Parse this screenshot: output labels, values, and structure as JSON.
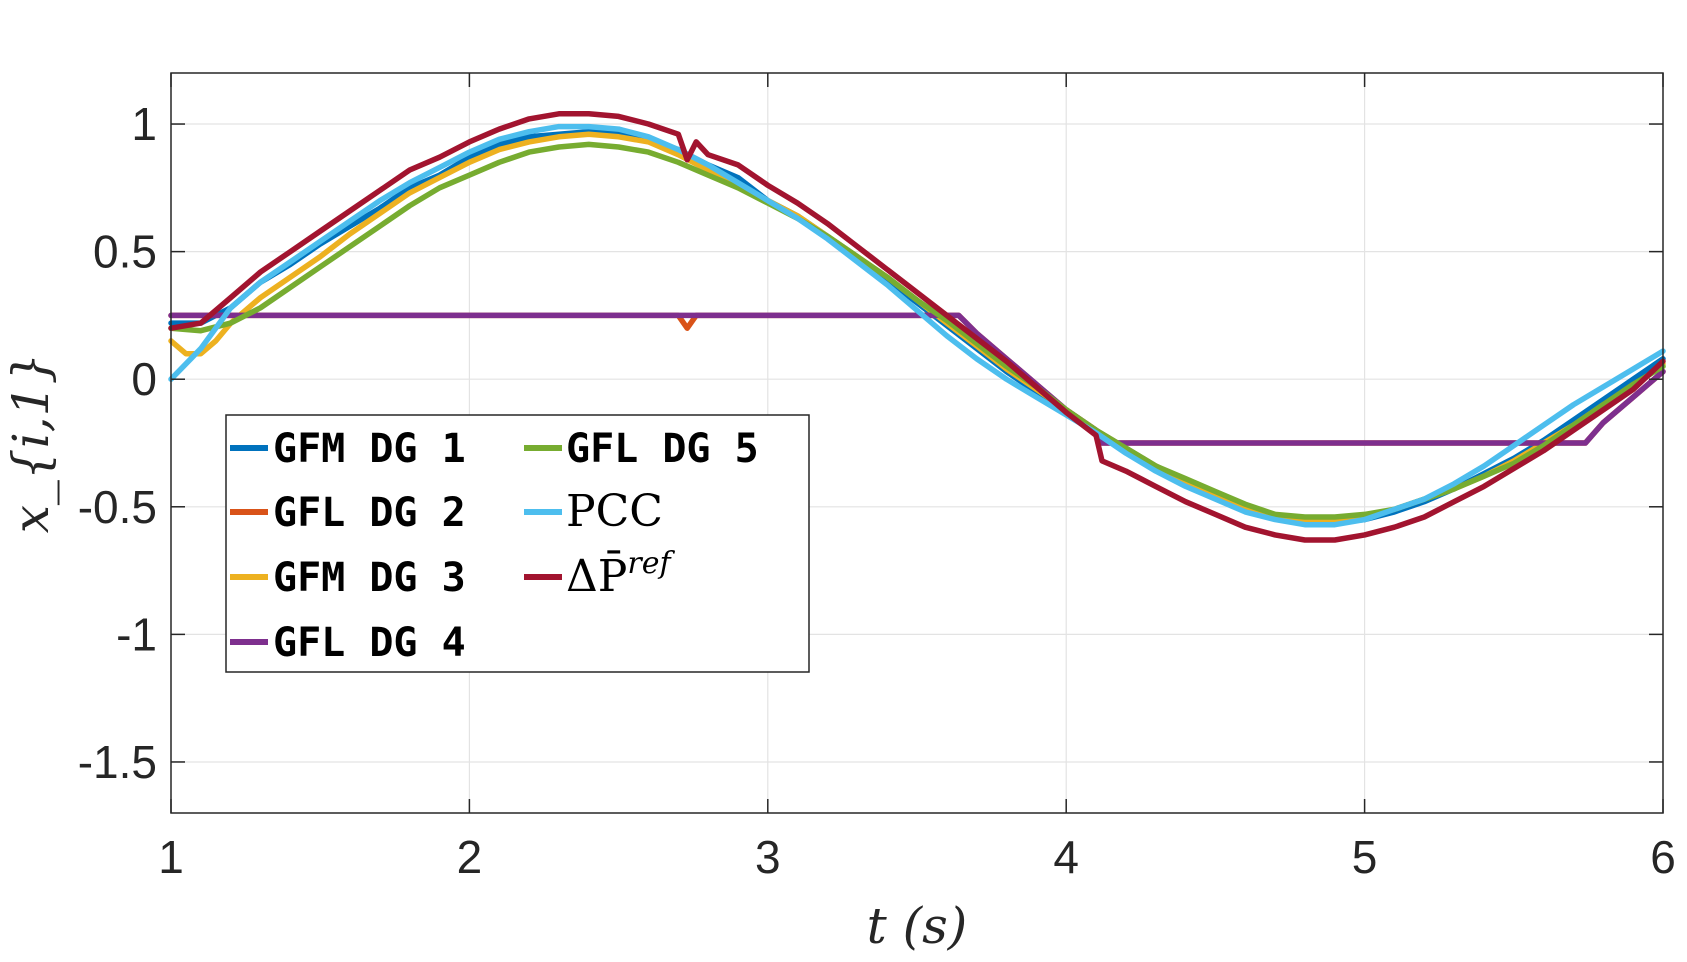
{
  "chart_data": {
    "type": "line",
    "title": "",
    "xlabel": "t (s)",
    "ylabel": "x_{i,1}",
    "xlim": [
      1,
      6
    ],
    "ylim": [
      -1.7,
      1.2
    ],
    "xticks": [
      1,
      2,
      3,
      4,
      5,
      6
    ],
    "xtick_labels": [
      "1",
      "2",
      "3",
      "4",
      "5",
      "6"
    ],
    "yticks": [
      1,
      0.5,
      0,
      -0.5,
      -1,
      -1.5
    ],
    "ytick_labels": [
      "1",
      "0.5",
      "0",
      "-0.5",
      "-1",
      "-1.5"
    ],
    "grid": true,
    "legend_position": "lower-left",
    "series": [
      {
        "name": "GFM DG 1",
        "color": "#0072BD",
        "points": [
          [
            1,
            0.22
          ],
          [
            1.1,
            0.22
          ],
          [
            1.2,
            0.28
          ],
          [
            1.3,
            0.38
          ],
          [
            1.4,
            0.45
          ],
          [
            1.5,
            0.53
          ],
          [
            1.6,
            0.6
          ],
          [
            1.7,
            0.67
          ],
          [
            1.8,
            0.75
          ],
          [
            1.9,
            0.8
          ],
          [
            2.0,
            0.87
          ],
          [
            2.1,
            0.92
          ],
          [
            2.2,
            0.95
          ],
          [
            2.3,
            0.96
          ],
          [
            2.4,
            0.97
          ],
          [
            2.5,
            0.96
          ],
          [
            2.6,
            0.94
          ],
          [
            2.7,
            0.9
          ],
          [
            2.8,
            0.84
          ],
          [
            2.9,
            0.79
          ],
          [
            3.0,
            0.7
          ],
          [
            3.1,
            0.64
          ],
          [
            3.2,
            0.56
          ],
          [
            3.3,
            0.48
          ],
          [
            3.4,
            0.39
          ],
          [
            3.5,
            0.3
          ],
          [
            3.6,
            0.21
          ],
          [
            3.7,
            0.12
          ],
          [
            3.8,
            0.03
          ],
          [
            3.9,
            -0.05
          ],
          [
            4.0,
            -0.13
          ],
          [
            4.1,
            -0.2
          ],
          [
            4.2,
            -0.27
          ],
          [
            4.3,
            -0.34
          ],
          [
            4.4,
            -0.4
          ],
          [
            4.5,
            -0.45
          ],
          [
            4.6,
            -0.5
          ],
          [
            4.7,
            -0.54
          ],
          [
            4.8,
            -0.56
          ],
          [
            4.9,
            -0.56
          ],
          [
            5.0,
            -0.55
          ],
          [
            5.1,
            -0.52
          ],
          [
            5.2,
            -0.48
          ],
          [
            5.3,
            -0.43
          ],
          [
            5.4,
            -0.37
          ],
          [
            5.5,
            -0.31
          ],
          [
            5.6,
            -0.24
          ],
          [
            5.7,
            -0.16
          ],
          [
            5.8,
            -0.08
          ],
          [
            5.9,
            0.0
          ],
          [
            6.0,
            0.08
          ]
        ]
      },
      {
        "name": "GFL DG 2",
        "color": "#D95319",
        "points": [
          [
            1,
            0.25
          ],
          [
            2.7,
            0.25
          ],
          [
            2.73,
            0.2
          ],
          [
            2.76,
            0.25
          ],
          [
            3.64,
            0.25
          ],
          [
            3.7,
            0.18
          ],
          [
            3.8,
            0.08
          ],
          [
            3.9,
            -0.02
          ],
          [
            4.0,
            -0.12
          ],
          [
            4.1,
            -0.2
          ],
          [
            4.12,
            -0.25
          ],
          [
            5.74,
            -0.25
          ],
          [
            5.8,
            -0.17
          ],
          [
            5.9,
            -0.07
          ],
          [
            6.0,
            0.03
          ]
        ]
      },
      {
        "name": "GFM DG 3",
        "color": "#EDB120",
        "points": [
          [
            1,
            0.15
          ],
          [
            1.05,
            0.1
          ],
          [
            1.1,
            0.1
          ],
          [
            1.15,
            0.15
          ],
          [
            1.2,
            0.22
          ],
          [
            1.3,
            0.32
          ],
          [
            1.4,
            0.4
          ],
          [
            1.5,
            0.48
          ],
          [
            1.6,
            0.57
          ],
          [
            1.7,
            0.65
          ],
          [
            1.8,
            0.73
          ],
          [
            1.9,
            0.79
          ],
          [
            2.0,
            0.85
          ],
          [
            2.1,
            0.9
          ],
          [
            2.2,
            0.93
          ],
          [
            2.3,
            0.95
          ],
          [
            2.4,
            0.96
          ],
          [
            2.5,
            0.95
          ],
          [
            2.6,
            0.93
          ],
          [
            2.7,
            0.88
          ],
          [
            2.8,
            0.82
          ],
          [
            2.9,
            0.76
          ],
          [
            3.0,
            0.7
          ],
          [
            3.1,
            0.64
          ],
          [
            3.2,
            0.56
          ],
          [
            3.3,
            0.48
          ],
          [
            3.4,
            0.4
          ],
          [
            3.5,
            0.31
          ],
          [
            3.6,
            0.22
          ],
          [
            3.7,
            0.13
          ],
          [
            3.8,
            0.04
          ],
          [
            3.9,
            -0.04
          ],
          [
            4.0,
            -0.12
          ],
          [
            4.1,
            -0.2
          ],
          [
            4.2,
            -0.27
          ],
          [
            4.3,
            -0.34
          ],
          [
            4.4,
            -0.4
          ],
          [
            4.5,
            -0.45
          ],
          [
            4.6,
            -0.5
          ],
          [
            4.7,
            -0.54
          ],
          [
            4.8,
            -0.55
          ],
          [
            4.9,
            -0.55
          ],
          [
            5.0,
            -0.54
          ],
          [
            5.1,
            -0.51
          ],
          [
            5.2,
            -0.47
          ],
          [
            5.3,
            -0.43
          ],
          [
            5.4,
            -0.38
          ],
          [
            5.5,
            -0.32
          ],
          [
            5.6,
            -0.25
          ],
          [
            5.7,
            -0.18
          ],
          [
            5.8,
            -0.1
          ],
          [
            5.9,
            -0.03
          ],
          [
            6.0,
            0.06
          ]
        ]
      },
      {
        "name": "GFL DG 4",
        "color": "#7E2F8E",
        "points": [
          [
            1,
            0.25
          ],
          [
            3.64,
            0.25
          ],
          [
            3.7,
            0.18
          ],
          [
            3.8,
            0.08
          ],
          [
            3.9,
            -0.02
          ],
          [
            4.0,
            -0.12
          ],
          [
            4.1,
            -0.2
          ],
          [
            4.12,
            -0.25
          ],
          [
            5.74,
            -0.25
          ],
          [
            5.8,
            -0.17
          ],
          [
            5.9,
            -0.07
          ],
          [
            6.0,
            0.03
          ]
        ]
      },
      {
        "name": "GFL DG 5",
        "color": "#77AC30",
        "points": [
          [
            1,
            0.2
          ],
          [
            1.1,
            0.19
          ],
          [
            1.2,
            0.22
          ],
          [
            1.3,
            0.28
          ],
          [
            1.4,
            0.36
          ],
          [
            1.5,
            0.44
          ],
          [
            1.6,
            0.52
          ],
          [
            1.7,
            0.6
          ],
          [
            1.8,
            0.68
          ],
          [
            1.9,
            0.75
          ],
          [
            2.0,
            0.8
          ],
          [
            2.1,
            0.85
          ],
          [
            2.2,
            0.89
          ],
          [
            2.3,
            0.91
          ],
          [
            2.4,
            0.92
          ],
          [
            2.5,
            0.91
          ],
          [
            2.6,
            0.89
          ],
          [
            2.7,
            0.85
          ],
          [
            2.8,
            0.8
          ],
          [
            2.9,
            0.75
          ],
          [
            3.0,
            0.69
          ],
          [
            3.1,
            0.63
          ],
          [
            3.2,
            0.56
          ],
          [
            3.3,
            0.48
          ],
          [
            3.4,
            0.4
          ],
          [
            3.5,
            0.31
          ],
          [
            3.6,
            0.23
          ],
          [
            3.7,
            0.14
          ],
          [
            3.8,
            0.05
          ],
          [
            3.9,
            -0.03
          ],
          [
            4.0,
            -0.12
          ],
          [
            4.1,
            -0.2
          ],
          [
            4.2,
            -0.27
          ],
          [
            4.3,
            -0.34
          ],
          [
            4.4,
            -0.39
          ],
          [
            4.5,
            -0.44
          ],
          [
            4.6,
            -0.49
          ],
          [
            4.7,
            -0.53
          ],
          [
            4.8,
            -0.54
          ],
          [
            4.9,
            -0.54
          ],
          [
            5.0,
            -0.53
          ],
          [
            5.1,
            -0.51
          ],
          [
            5.2,
            -0.47
          ],
          [
            5.3,
            -0.43
          ],
          [
            5.4,
            -0.38
          ],
          [
            5.5,
            -0.33
          ],
          [
            5.6,
            -0.26
          ],
          [
            5.7,
            -0.18
          ],
          [
            5.8,
            -0.1
          ],
          [
            5.9,
            -0.02
          ],
          [
            6.0,
            0.05
          ]
        ]
      },
      {
        "name": "PCC",
        "color": "#4DBEEE",
        "points": [
          [
            1,
            0.0
          ],
          [
            1.1,
            0.12
          ],
          [
            1.2,
            0.28
          ],
          [
            1.3,
            0.38
          ],
          [
            1.4,
            0.46
          ],
          [
            1.5,
            0.54
          ],
          [
            1.6,
            0.62
          ],
          [
            1.7,
            0.7
          ],
          [
            1.8,
            0.77
          ],
          [
            1.9,
            0.83
          ],
          [
            2.0,
            0.89
          ],
          [
            2.1,
            0.94
          ],
          [
            2.2,
            0.97
          ],
          [
            2.3,
            0.99
          ],
          [
            2.4,
            0.99
          ],
          [
            2.5,
            0.98
          ],
          [
            2.6,
            0.95
          ],
          [
            2.7,
            0.9
          ],
          [
            2.8,
            0.84
          ],
          [
            2.9,
            0.77
          ],
          [
            3.0,
            0.7
          ],
          [
            3.1,
            0.63
          ],
          [
            3.2,
            0.55
          ],
          [
            3.3,
            0.46
          ],
          [
            3.4,
            0.37
          ],
          [
            3.5,
            0.27
          ],
          [
            3.6,
            0.17
          ],
          [
            3.7,
            0.08
          ],
          [
            3.8,
            0.0
          ],
          [
            3.9,
            -0.07
          ],
          [
            4.0,
            -0.14
          ],
          [
            4.1,
            -0.21
          ],
          [
            4.2,
            -0.29
          ],
          [
            4.3,
            -0.36
          ],
          [
            4.4,
            -0.42
          ],
          [
            4.5,
            -0.47
          ],
          [
            4.6,
            -0.52
          ],
          [
            4.7,
            -0.55
          ],
          [
            4.8,
            -0.57
          ],
          [
            4.9,
            -0.57
          ],
          [
            5.0,
            -0.55
          ],
          [
            5.1,
            -0.51
          ],
          [
            5.2,
            -0.47
          ],
          [
            5.3,
            -0.41
          ],
          [
            5.4,
            -0.34
          ],
          [
            5.5,
            -0.26
          ],
          [
            5.6,
            -0.18
          ],
          [
            5.7,
            -0.1
          ],
          [
            5.8,
            -0.03
          ],
          [
            5.9,
            0.04
          ],
          [
            6.0,
            0.11
          ]
        ]
      },
      {
        "name": "ΔP̄^ref",
        "color": "#A2142F",
        "points": [
          [
            1,
            0.2
          ],
          [
            1.1,
            0.22
          ],
          [
            1.2,
            0.32
          ],
          [
            1.3,
            0.42
          ],
          [
            1.4,
            0.5
          ],
          [
            1.5,
            0.58
          ],
          [
            1.6,
            0.66
          ],
          [
            1.7,
            0.74
          ],
          [
            1.8,
            0.82
          ],
          [
            1.9,
            0.87
          ],
          [
            2.0,
            0.93
          ],
          [
            2.1,
            0.98
          ],
          [
            2.2,
            1.02
          ],
          [
            2.3,
            1.04
          ],
          [
            2.4,
            1.04
          ],
          [
            2.5,
            1.03
          ],
          [
            2.6,
            1.0
          ],
          [
            2.7,
            0.96
          ],
          [
            2.73,
            0.86
          ],
          [
            2.76,
            0.93
          ],
          [
            2.8,
            0.88
          ],
          [
            2.9,
            0.84
          ],
          [
            3.0,
            0.76
          ],
          [
            3.1,
            0.69
          ],
          [
            3.2,
            0.61
          ],
          [
            3.3,
            0.52
          ],
          [
            3.4,
            0.43
          ],
          [
            3.5,
            0.34
          ],
          [
            3.6,
            0.25
          ],
          [
            3.7,
            0.16
          ],
          [
            3.8,
            0.07
          ],
          [
            3.9,
            -0.03
          ],
          [
            4.0,
            -0.13
          ],
          [
            4.1,
            -0.22
          ],
          [
            4.12,
            -0.32
          ],
          [
            4.2,
            -0.36
          ],
          [
            4.3,
            -0.42
          ],
          [
            4.4,
            -0.48
          ],
          [
            4.5,
            -0.53
          ],
          [
            4.6,
            -0.58
          ],
          [
            4.7,
            -0.61
          ],
          [
            4.8,
            -0.63
          ],
          [
            4.9,
            -0.63
          ],
          [
            5.0,
            -0.61
          ],
          [
            5.1,
            -0.58
          ],
          [
            5.2,
            -0.54
          ],
          [
            5.3,
            -0.48
          ],
          [
            5.4,
            -0.42
          ],
          [
            5.5,
            -0.35
          ],
          [
            5.6,
            -0.28
          ],
          [
            5.7,
            -0.2
          ],
          [
            5.8,
            -0.12
          ],
          [
            5.9,
            -0.04
          ],
          [
            6.0,
            0.07
          ]
        ]
      }
    ]
  },
  "legend": {
    "col1": [
      "GFM DG 1",
      "GFL DG 2",
      "GFM DG 3",
      "GFL DG 4"
    ],
    "col2": [
      "GFL DG 5",
      "PCC",
      "ΔP̄"
    ],
    "col2_sup": "ref"
  }
}
